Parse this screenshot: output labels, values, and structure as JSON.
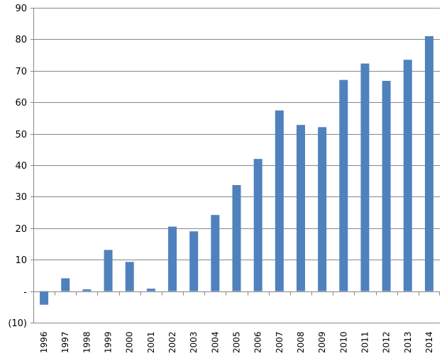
{
  "chart_data": {
    "type": "bar",
    "title": "",
    "xlabel": "",
    "ylabel": "",
    "categories": [
      "1996",
      "1997",
      "1998",
      "1999",
      "2000",
      "2001",
      "2002",
      "2003",
      "2004",
      "2005",
      "2006",
      "2007",
      "2008",
      "2009",
      "2010",
      "2011",
      "2012",
      "2013",
      "2014"
    ],
    "series": [
      {
        "values": [
          -4.3,
          4.1,
          0.6,
          13.1,
          9.3,
          0.8,
          20.5,
          19.0,
          24.2,
          33.7,
          42.0,
          57.4,
          52.8,
          52.1,
          67.1,
          72.3,
          66.8,
          73.5,
          81.0
        ],
        "color": "#4F81BD"
      }
    ],
    "ylim": [
      -10,
      90
    ],
    "yticks": [
      -10,
      0,
      10,
      20,
      30,
      40,
      50,
      60,
      70,
      80,
      90
    ],
    "ytick_labels": [
      "(10)",
      "-",
      "10",
      "20",
      "30",
      "40",
      "50",
      "60",
      "70",
      "80",
      "90"
    ],
    "grid": true,
    "gridline_color": "#868686",
    "legend": "none"
  }
}
